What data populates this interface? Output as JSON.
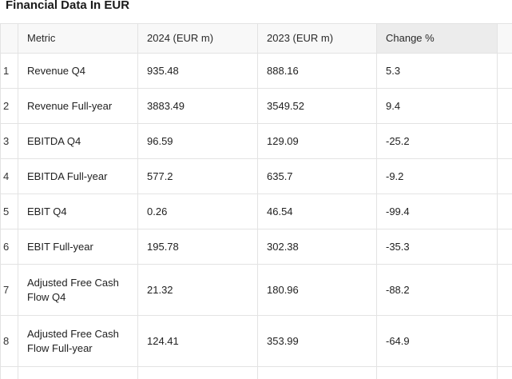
{
  "title": "Financial Data In EUR",
  "table": {
    "columns": [
      "Metric",
      "2024 (EUR m)",
      "2023 (EUR m)",
      "Change %"
    ],
    "rows": [
      {
        "index": "1",
        "metric": "Revenue Q4",
        "y2024": "935.48",
        "y2023": "888.16",
        "change": "5.3"
      },
      {
        "index": "2",
        "metric": "Revenue Full-year",
        "y2024": "3883.49",
        "y2023": "3549.52",
        "change": "9.4"
      },
      {
        "index": "3",
        "metric": "EBITDA Q4",
        "y2024": "96.59",
        "y2023": "129.09",
        "change": "-25.2"
      },
      {
        "index": "4",
        "metric": "EBITDA Full-year",
        "y2024": "577.2",
        "y2023": "635.7",
        "change": "-9.2"
      },
      {
        "index": "5",
        "metric": "EBIT Q4",
        "y2024": "0.26",
        "y2023": "46.54",
        "change": "-99.4"
      },
      {
        "index": "6",
        "metric": "EBIT Full-year",
        "y2024": "195.78",
        "y2023": "302.38",
        "change": "-35.3"
      },
      {
        "index": "7",
        "metric": "Adjusted Free Cash Flow Q4",
        "y2024": "21.32",
        "y2023": "180.96",
        "change": "-88.2"
      },
      {
        "index": "8",
        "metric": "Adjusted Free Cash Flow Full-year",
        "y2024": "124.41",
        "y2023": "353.99",
        "change": "-64.9"
      }
    ]
  }
}
